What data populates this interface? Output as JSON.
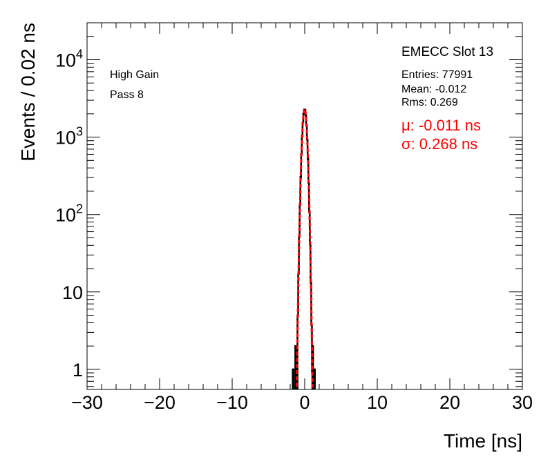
{
  "chart_data": {
    "type": "histogram",
    "xlabel": "Time [ns]",
    "ylabel": "Events / 0.02 ns",
    "xlim": [
      -30,
      30
    ],
    "ylim": [
      0.55,
      30000
    ],
    "yscale": "log",
    "x_ticks": [
      -30,
      -20,
      -10,
      0,
      10,
      20,
      30
    ],
    "x_tick_labels": [
      "−30",
      "−20",
      "−10",
      "0",
      "10",
      "20",
      "30"
    ],
    "y_ticks": [
      1,
      10,
      100,
      1000,
      10000
    ],
    "y_tick_labels": [
      {
        "base": "1",
        "exp": ""
      },
      {
        "base": "10",
        "exp": ""
      },
      {
        "base": "10",
        "exp": "2"
      },
      {
        "base": "10",
        "exp": "3"
      },
      {
        "base": "10",
        "exp": "4"
      }
    ],
    "histogram_color": "#000000",
    "fit_color": "#ff0000",
    "histogram": {
      "bin_width": 0.02,
      "mean": -0.012,
      "rms": 0.269,
      "entries": 77991,
      "tail_bins": [
        {
          "x": -1.6,
          "y": 1
        },
        {
          "x": -1.25,
          "y": 2
        },
        {
          "x": -1.05,
          "y": 1
        },
        {
          "x": 1.1,
          "y": 2
        },
        {
          "x": 1.35,
          "y": 1
        }
      ]
    },
    "fit": {
      "function": "gaus",
      "mu": -0.011,
      "sigma": 0.268,
      "peak": 2300
    },
    "labels": {
      "gain": "High Gain",
      "pass": "Pass 8",
      "slot": "EMECC Slot 13",
      "entries": "Entries: 77991",
      "mean": "Mean: -0.012",
      "rms": "Rms: 0.269",
      "fit_mu": "μ: -0.011 ns",
      "fit_sigma": "σ: 0.268 ns"
    }
  }
}
